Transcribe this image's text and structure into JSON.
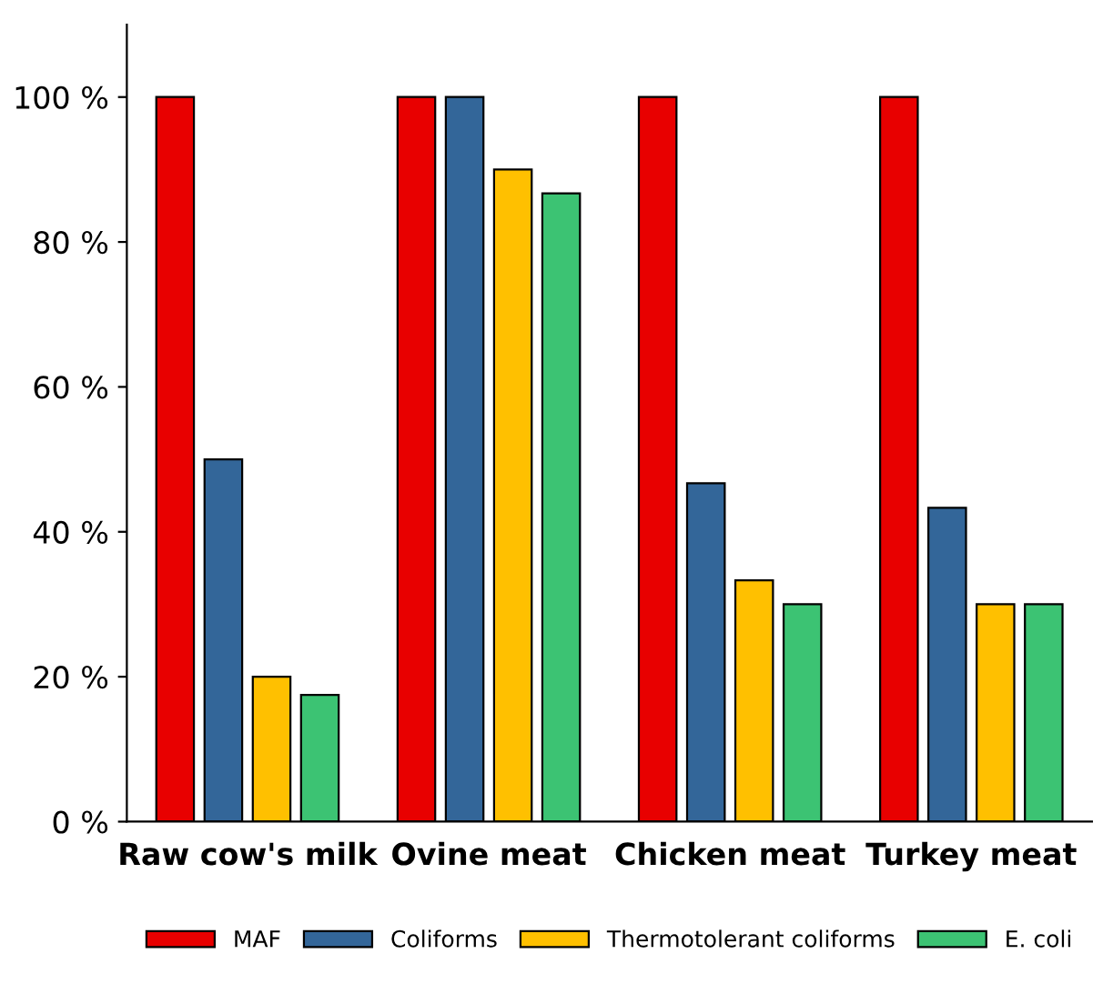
{
  "chart_data": {
    "type": "bar",
    "categories": [
      "Raw cow's milk",
      "Ovine meat",
      "Chicken meat",
      "Turkey meat"
    ],
    "series": [
      {
        "name": "MAF",
        "color": "#e80000",
        "values": [
          100,
          100,
          100,
          100
        ]
      },
      {
        "name": "Coliforms",
        "color": "#336699",
        "values": [
          50,
          100,
          46.7,
          43.3
        ]
      },
      {
        "name": "Thermotolerant coliforms",
        "color": "#ffc000",
        "values": [
          20,
          90,
          33.3,
          30
        ]
      },
      {
        "name": "E. coli",
        "color": "#3cc373",
        "values": [
          17.5,
          86.7,
          30,
          30
        ]
      }
    ],
    "ylim": [
      0,
      110
    ],
    "yticks": [
      {
        "value": 0,
        "label": "0 %"
      },
      {
        "value": 20,
        "label": "20 %"
      },
      {
        "value": 40,
        "label": "40 %"
      },
      {
        "value": 60,
        "label": "60 %"
      },
      {
        "value": 80,
        "label": "80 %"
      },
      {
        "value": 100,
        "label": "100 %"
      }
    ],
    "grid": false,
    "legend": "bottom"
  }
}
